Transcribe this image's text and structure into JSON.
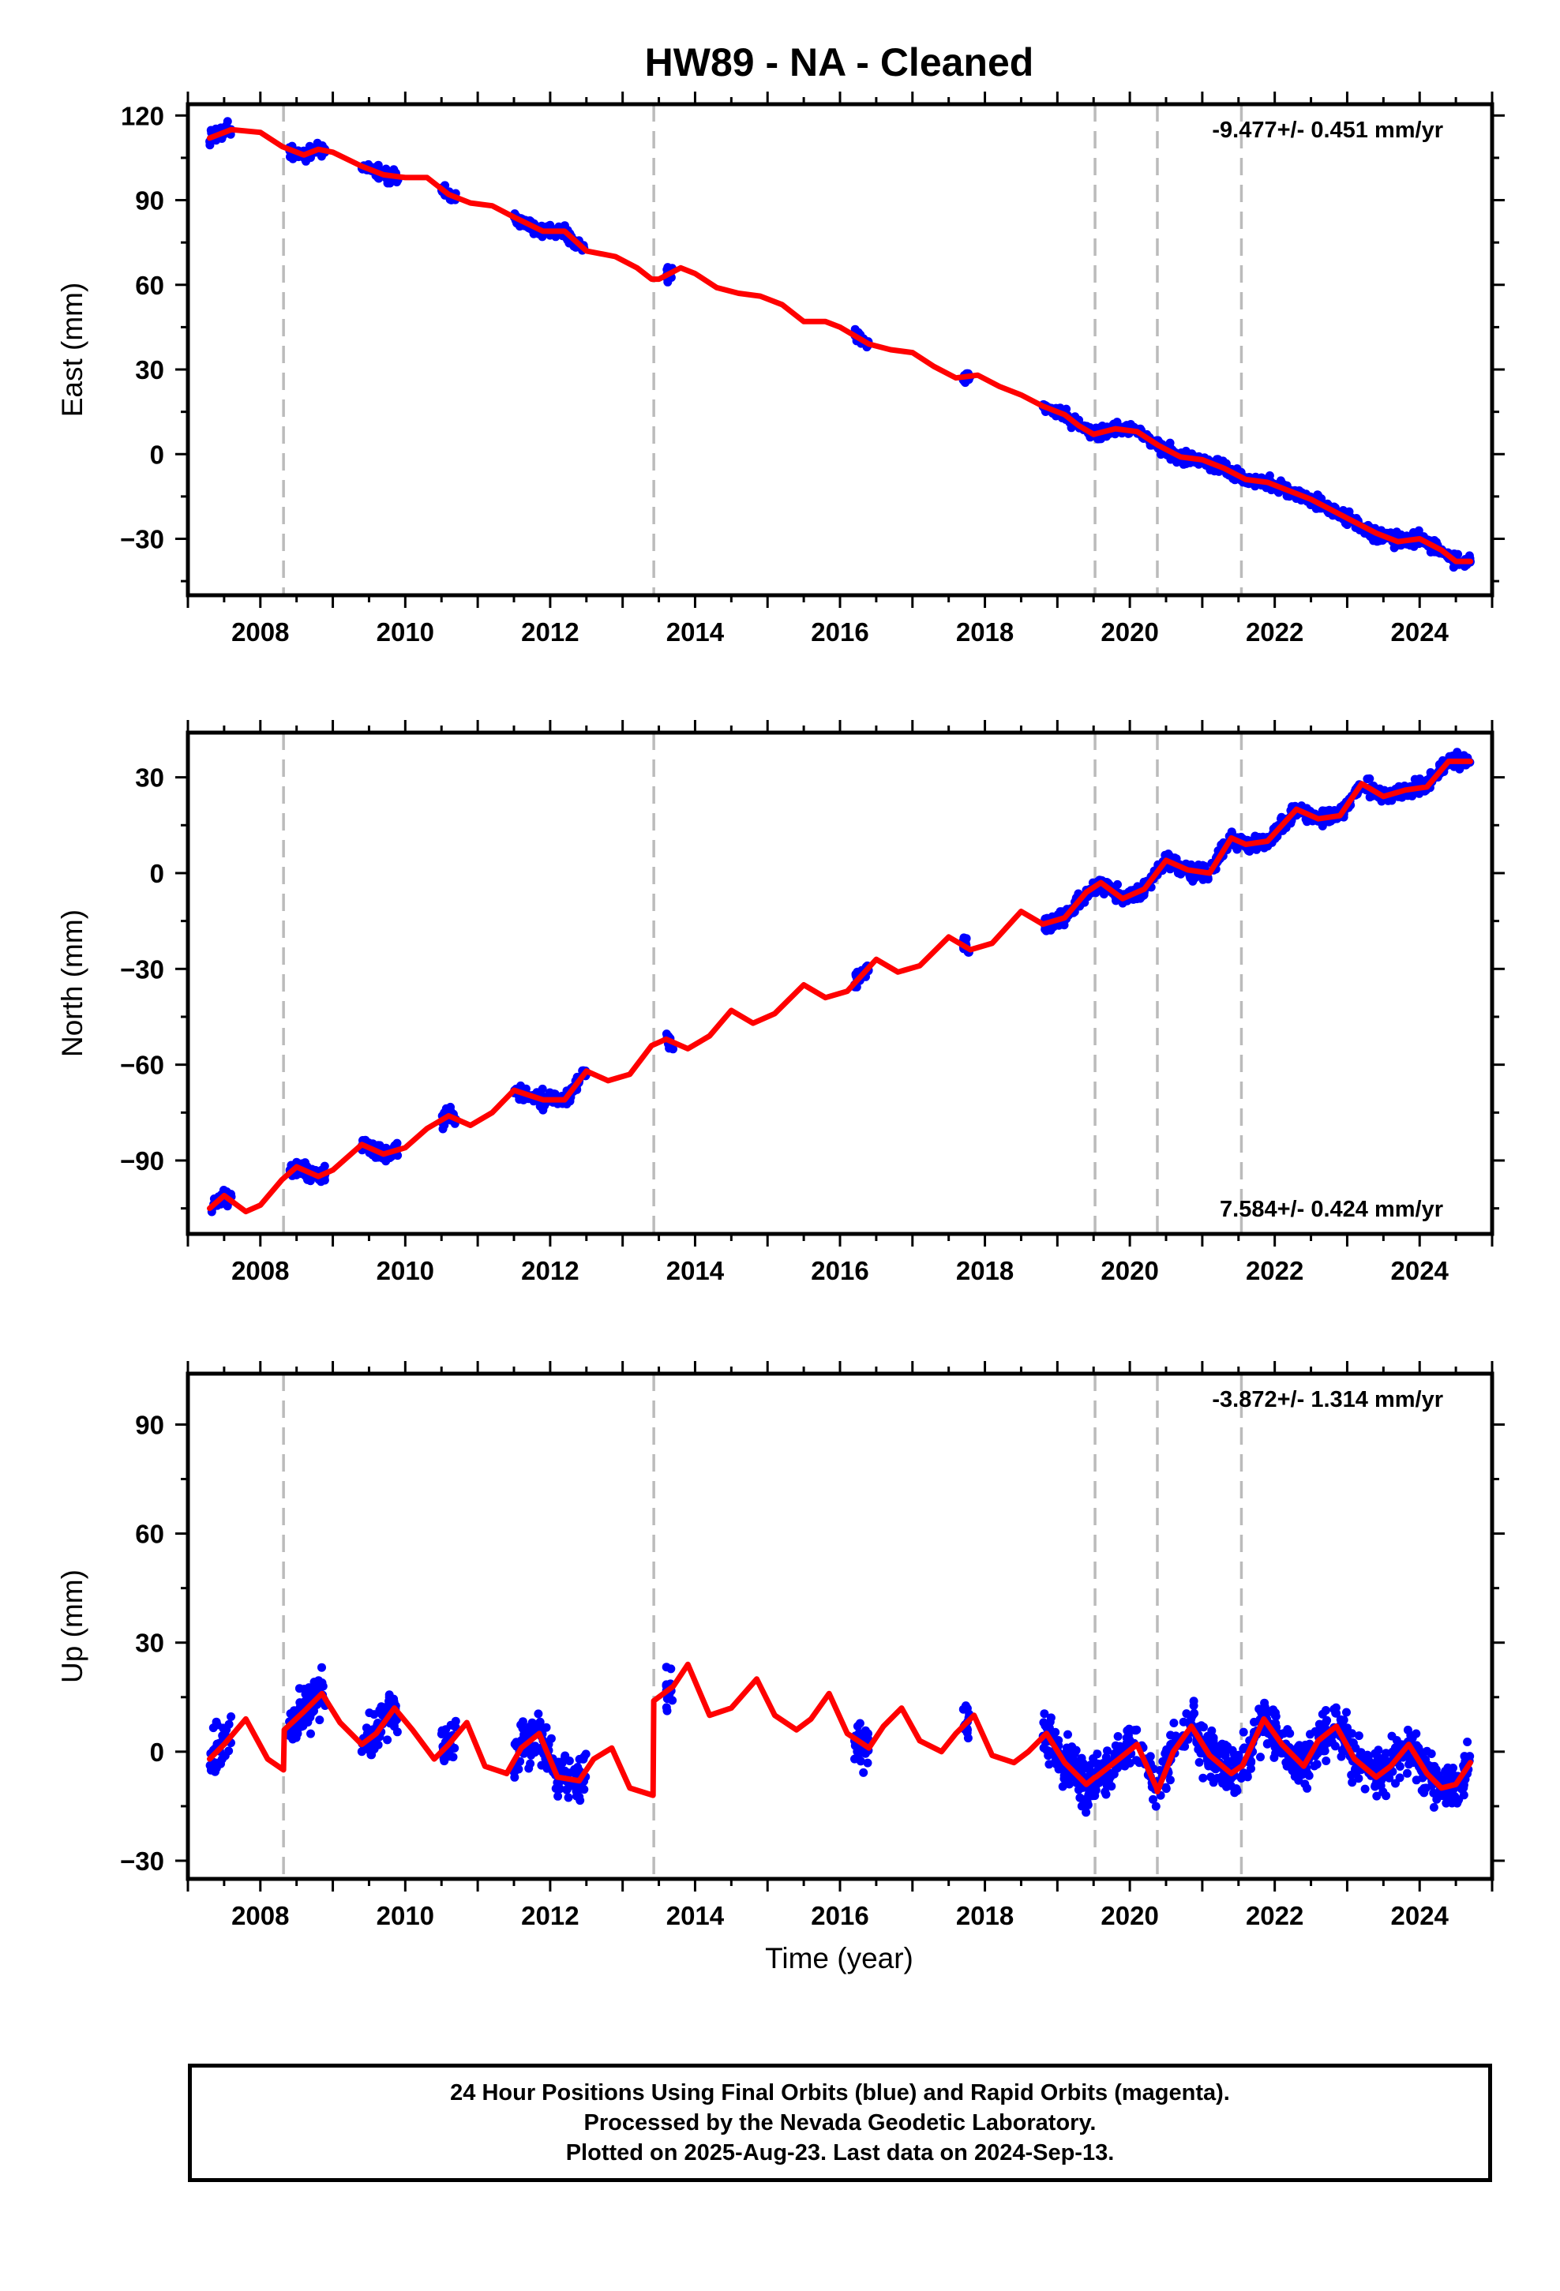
{
  "title": "HW89  - NA - Cleaned",
  "xlabel": "Time (year)",
  "x_ticks": [
    "2008",
    "2010",
    "2012",
    "2014",
    "2016",
    "2018",
    "2020",
    "2022",
    "2024"
  ],
  "footer": {
    "line1": "24 Hour Positions Using Final Orbits (blue) and Rapid Orbits (magenta).",
    "line2": "Processed by the Nevada Geodetic Laboratory.",
    "line3": "Plotted on 2025-Aug-23. Last data on 2024-Sep-13."
  },
  "colors": {
    "data": "#0000ff",
    "model": "#ff0000",
    "offsets": "#bbbbbb",
    "frame": "#000000"
  },
  "chart_data": [
    {
      "type": "scatter",
      "component": "East",
      "ylabel": "East (mm)",
      "rate": "-9.477+/- 0.451 mm/yr",
      "rate_position": "top-right",
      "xlim": [
        2007.0,
        2025.0
      ],
      "ylim": [
        -50,
        124
      ],
      "yticks": [
        -30,
        0,
        30,
        60,
        90,
        120
      ],
      "ytick_labels": [
        "−30",
        "0",
        "30",
        "60",
        "90",
        "120"
      ],
      "grid": false,
      "offset_epochs": [
        2008.32,
        2013.43,
        2019.52,
        2020.38,
        2021.54
      ],
      "data_segments": [
        [
          2007.3,
          2007.6
        ],
        [
          2008.4,
          2008.9
        ],
        [
          2009.4,
          2009.9
        ],
        [
          2010.5,
          2010.7
        ],
        [
          2011.5,
          2012.5
        ],
        [
          2013.6,
          2013.7
        ],
        [
          2016.2,
          2016.4
        ],
        [
          2017.7,
          2017.8
        ],
        [
          2018.8,
          2024.7
        ]
      ],
      "model": {
        "x": [
          2007.3,
          2007.6,
          2008.0,
          2008.3,
          2008.6,
          2008.8,
          2009.0,
          2009.4,
          2009.7,
          2010.0,
          2010.3,
          2010.6,
          2010.9,
          2011.2,
          2011.5,
          2011.9,
          2012.2,
          2012.5,
          2012.9,
          2013.2,
          2013.4,
          2013.5,
          2013.8,
          2014.0,
          2014.3,
          2014.6,
          2014.9,
          2015.2,
          2015.5,
          2015.8,
          2016.0,
          2016.4,
          2016.7,
          2017.0,
          2017.3,
          2017.6,
          2017.9,
          2018.2,
          2018.5,
          2018.8,
          2019.1,
          2019.3,
          2019.5,
          2019.8,
          2020.1,
          2020.4,
          2020.7,
          2021.0,
          2021.3,
          2021.6,
          2021.9,
          2022.2,
          2022.5,
          2022.8,
          2023.1,
          2023.4,
          2023.7,
          2024.0,
          2024.3,
          2024.5,
          2024.7
        ],
        "y": [
          112,
          115,
          114,
          109,
          106,
          108,
          107,
          102,
          99,
          98,
          98,
          92,
          89,
          88,
          84,
          79,
          79,
          72,
          70,
          66,
          62,
          62,
          66,
          64,
          59,
          57,
          56,
          53,
          47,
          47,
          45,
          39,
          37,
          36,
          31,
          27,
          28,
          24,
          21,
          17,
          14,
          10,
          7,
          9,
          8,
          3,
          -1,
          -2,
          -5,
          -9,
          -10,
          -13,
          -16,
          -20,
          -24,
          -28,
          -31,
          -30,
          -34,
          -38,
          -38
        ]
      }
    },
    {
      "type": "scatter",
      "component": "North",
      "ylabel": "North (mm)",
      "rate": "7.584+/- 0.424 mm/yr",
      "rate_position": "bottom-right",
      "xlim": [
        2007.0,
        2025.0
      ],
      "ylim": [
        -113,
        44
      ],
      "yticks": [
        -90,
        -60,
        -30,
        0,
        30
      ],
      "ytick_labels": [
        "−90",
        "−60",
        "−30",
        "0",
        "30"
      ],
      "grid": false,
      "offset_epochs": [
        2008.32,
        2013.43,
        2019.52,
        2020.38,
        2021.54
      ],
      "data_segments": [
        [
          2007.3,
          2007.6
        ],
        [
          2008.4,
          2008.9
        ],
        [
          2009.4,
          2009.9
        ],
        [
          2010.5,
          2010.7
        ],
        [
          2011.5,
          2012.5
        ],
        [
          2013.6,
          2013.7
        ],
        [
          2016.2,
          2016.4
        ],
        [
          2017.7,
          2017.8
        ],
        [
          2018.8,
          2024.7
        ]
      ],
      "model": {
        "x": [
          2007.3,
          2007.5,
          2007.8,
          2008.0,
          2008.3,
          2008.5,
          2008.8,
          2009.0,
          2009.4,
          2009.7,
          2010.0,
          2010.3,
          2010.6,
          2010.9,
          2011.2,
          2011.5,
          2011.9,
          2012.2,
          2012.5,
          2012.8,
          2013.1,
          2013.4,
          2013.6,
          2013.9,
          2014.2,
          2014.5,
          2014.8,
          2015.1,
          2015.5,
          2015.8,
          2016.1,
          2016.5,
          2016.8,
          2017.1,
          2017.5,
          2017.8,
          2018.1,
          2018.5,
          2018.8,
          2019.1,
          2019.4,
          2019.6,
          2019.9,
          2020.2,
          2020.5,
          2020.8,
          2021.1,
          2021.4,
          2021.6,
          2021.9,
          2022.3,
          2022.6,
          2022.9,
          2023.2,
          2023.5,
          2023.8,
          2024.1,
          2024.4,
          2024.7
        ],
        "y": [
          -105,
          -101,
          -106,
          -104,
          -96,
          -92,
          -95,
          -93,
          -85,
          -88,
          -86,
          -80,
          -76,
          -79,
          -75,
          -68,
          -71,
          -71,
          -62,
          -65,
          -63,
          -54,
          -52,
          -55,
          -51,
          -43,
          -47,
          -44,
          -35,
          -39,
          -37,
          -27,
          -31,
          -29,
          -20,
          -24,
          -22,
          -12,
          -16,
          -14,
          -6,
          -3,
          -8,
          -5,
          4,
          1,
          0,
          11,
          9,
          10,
          20,
          17,
          18,
          28,
          24,
          26,
          27,
          35,
          35
        ]
      }
    },
    {
      "type": "scatter",
      "component": "Up",
      "ylabel": "Up (mm)",
      "rate": "-3.872+/- 1.314 mm/yr",
      "rate_position": "top-right",
      "xlim": [
        2007.0,
        2025.0
      ],
      "ylim": [
        -35,
        104
      ],
      "yticks": [
        -30,
        0,
        30,
        60,
        90
      ],
      "ytick_labels": [
        "−30",
        "0",
        "30",
        "60",
        "90"
      ],
      "grid": false,
      "offset_epochs": [
        2008.32,
        2013.43,
        2019.52,
        2020.38,
        2021.54
      ],
      "data_segments": [
        [
          2007.3,
          2007.6
        ],
        [
          2008.4,
          2008.9
        ],
        [
          2009.4,
          2009.9
        ],
        [
          2010.5,
          2010.7
        ],
        [
          2011.5,
          2012.5
        ],
        [
          2013.6,
          2013.7
        ],
        [
          2016.2,
          2016.4
        ],
        [
          2017.7,
          2017.8
        ],
        [
          2018.8,
          2024.7
        ]
      ],
      "model": {
        "x": [
          2007.3,
          2007.5,
          2007.8,
          2008.1,
          2008.32,
          2008.33,
          2008.6,
          2008.85,
          2009.1,
          2009.4,
          2009.6,
          2009.85,
          2010.1,
          2010.4,
          2010.6,
          2010.85,
          2011.1,
          2011.4,
          2011.6,
          2011.85,
          2012.1,
          2012.4,
          2012.6,
          2012.85,
          2013.1,
          2013.42,
          2013.43,
          2013.7,
          2013.9,
          2014.2,
          2014.5,
          2014.85,
          2015.1,
          2015.4,
          2015.6,
          2015.85,
          2016.1,
          2016.4,
          2016.6,
          2016.85,
          2017.1,
          2017.4,
          2017.6,
          2017.85,
          2018.1,
          2018.4,
          2018.6,
          2018.85,
          2019.1,
          2019.4,
          2019.52,
          2019.53,
          2019.85,
          2020.1,
          2020.37,
          2020.38,
          2020.6,
          2020.85,
          2021.1,
          2021.4,
          2021.54,
          2021.55,
          2021.85,
          2022.1,
          2022.4,
          2022.6,
          2022.85,
          2023.1,
          2023.4,
          2023.6,
          2023.85,
          2024.1,
          2024.3,
          2024.5,
          2024.7
        ],
        "y": [
          -2,
          2,
          9,
          -2,
          -5,
          6,
          11,
          16,
          8,
          2,
          5,
          12,
          6,
          -2,
          2,
          8,
          -4,
          -6,
          1,
          5,
          -7,
          -8,
          -2,
          1,
          -10,
          -12,
          14,
          18,
          24,
          10,
          12,
          20,
          10,
          6,
          9,
          16,
          5,
          1,
          7,
          12,
          3,
          0,
          5,
          10,
          -1,
          -3,
          0,
          5,
          -3,
          -9,
          -7,
          -7,
          -2,
          2,
          -10,
          -11,
          0,
          7,
          -1,
          -6,
          -4,
          -4,
          9,
          2,
          -4,
          3,
          7,
          -2,
          -7,
          -4,
          2,
          -6,
          -10,
          -9,
          -3
        ]
      }
    }
  ]
}
